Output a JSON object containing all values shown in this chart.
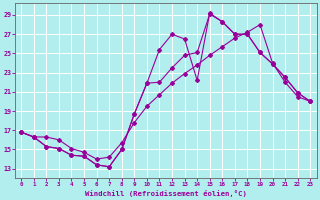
{
  "xlabel": "Windchill (Refroidissement éolien,°C)",
  "bg_color": "#b3eeee",
  "line_color": "#990099",
  "grid_color": "#ffffff",
  "x_ticks": [
    0,
    1,
    2,
    3,
    4,
    5,
    6,
    7,
    8,
    9,
    10,
    11,
    12,
    13,
    14,
    15,
    16,
    17,
    18,
    19,
    20,
    21,
    22,
    23
  ],
  "y_ticks": [
    13,
    15,
    17,
    19,
    21,
    23,
    25,
    27,
    29
  ],
  "xlim": [
    -0.5,
    23.5
  ],
  "ylim": [
    12.0,
    30.2
  ],
  "curve1_x": [
    0,
    1,
    2,
    3,
    4,
    5,
    6,
    7,
    8,
    9,
    10,
    11,
    12,
    13,
    14,
    15,
    16,
    17,
    18,
    19,
    20,
    21,
    22,
    23
  ],
  "curve1_y": [
    16.8,
    16.3,
    15.3,
    15.1,
    14.4,
    14.3,
    13.4,
    13.2,
    15.0,
    18.7,
    21.9,
    25.4,
    27.0,
    26.5,
    22.2,
    29.2,
    28.3,
    27.0,
    27.0,
    25.1,
    23.9,
    22.5,
    20.9,
    20.0
  ],
  "curve2_x": [
    0,
    1,
    2,
    3,
    4,
    5,
    6,
    7,
    8,
    9,
    10,
    11,
    12,
    13,
    14,
    15,
    16,
    17,
    18,
    19,
    20,
    21,
    22,
    23
  ],
  "curve2_y": [
    16.8,
    16.3,
    16.3,
    16.0,
    15.1,
    14.7,
    14.0,
    14.2,
    15.7,
    17.8,
    19.5,
    20.7,
    21.9,
    22.9,
    23.8,
    24.8,
    25.7,
    26.6,
    27.2,
    28.0,
    24.0,
    22.0,
    20.5,
    20.0
  ],
  "curve3_x": [
    0,
    1,
    2,
    3,
    4,
    5,
    6,
    7,
    8,
    9,
    10,
    11,
    12,
    13,
    14,
    15,
    16,
    17,
    18,
    19,
    20,
    21,
    22,
    23
  ],
  "curve3_y": [
    16.8,
    16.3,
    15.3,
    15.1,
    14.4,
    14.3,
    13.4,
    13.2,
    15.0,
    18.7,
    21.9,
    22.0,
    23.5,
    24.8,
    25.1,
    29.1,
    28.3,
    27.0,
    27.0,
    25.1,
    23.9,
    22.5,
    20.9,
    20.0
  ]
}
